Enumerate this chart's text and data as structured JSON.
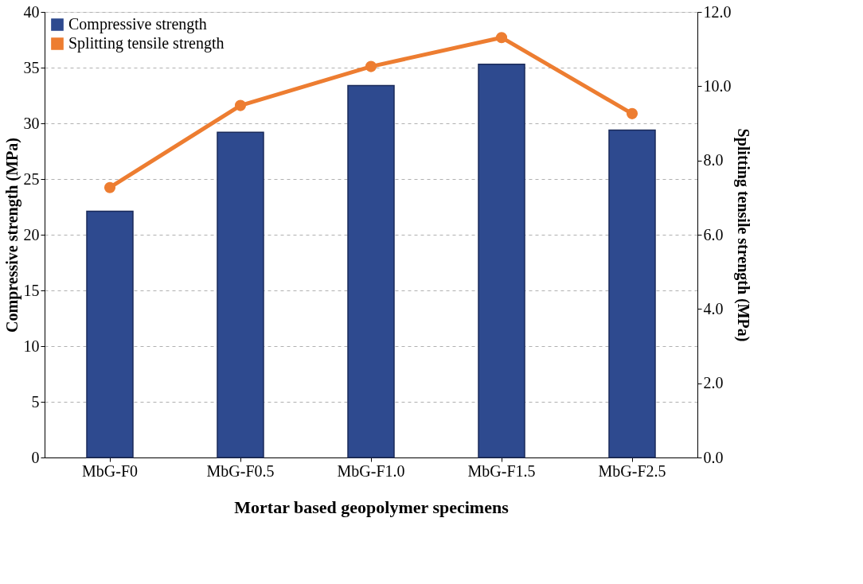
{
  "chart_data": {
    "type": "bar",
    "xlabel": "Mortar based geopolymer specimens",
    "ylabel": "Compressive strength (MPa)",
    "y2label": "Splitting tensile strength (MPa)",
    "categories": [
      "MbG-F0",
      "MbG-F0.5",
      "MbG-F1.0",
      "MbG-F1.5",
      "MbG-F2.5"
    ],
    "series": [
      {
        "name": "Compressive strength",
        "color": "#2e4a8f",
        "values": [
          22.1,
          29.2,
          33.4,
          35.3,
          29.4
        ]
      },
      {
        "name": "Splitting tensile strength",
        "type": "line",
        "axis": "y2",
        "color": "#ed7d31",
        "marker": "circle",
        "values": [
          7.27,
          9.48,
          10.53,
          11.31,
          9.26
        ]
      }
    ],
    "ylim": [
      0,
      40
    ],
    "yticks": [
      0,
      5,
      10,
      15,
      20,
      25,
      30,
      35,
      40
    ],
    "y2lim": [
      0,
      12
    ],
    "y2ticks": [
      {
        "value": 0,
        "label": "0.0"
      },
      {
        "value": 2,
        "label": "2.0"
      },
      {
        "value": 4,
        "label": "4.0"
      },
      {
        "value": 6,
        "label": "6.0"
      },
      {
        "value": 8,
        "label": "8.0"
      },
      {
        "value": 10,
        "label": "10.0"
      },
      {
        "value": 12,
        "label": "12.0"
      }
    ],
    "grid": "y",
    "legend": "top left"
  }
}
